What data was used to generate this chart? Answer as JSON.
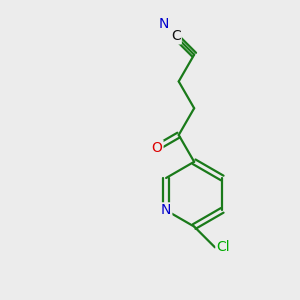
{
  "background_color": "#ececec",
  "bond_color": "#1a7a1a",
  "bond_lw": 1.6,
  "atoms": {
    "N": {
      "color": "#0000cc"
    },
    "O": {
      "color": "#dd0000"
    },
    "Cl": {
      "color": "#00aa00"
    },
    "C": {
      "color": "#111111"
    }
  },
  "figsize": [
    3.0,
    3.0
  ],
  "dpi": 100,
  "xlim": [
    0,
    10
  ],
  "ylim": [
    0,
    10
  ]
}
